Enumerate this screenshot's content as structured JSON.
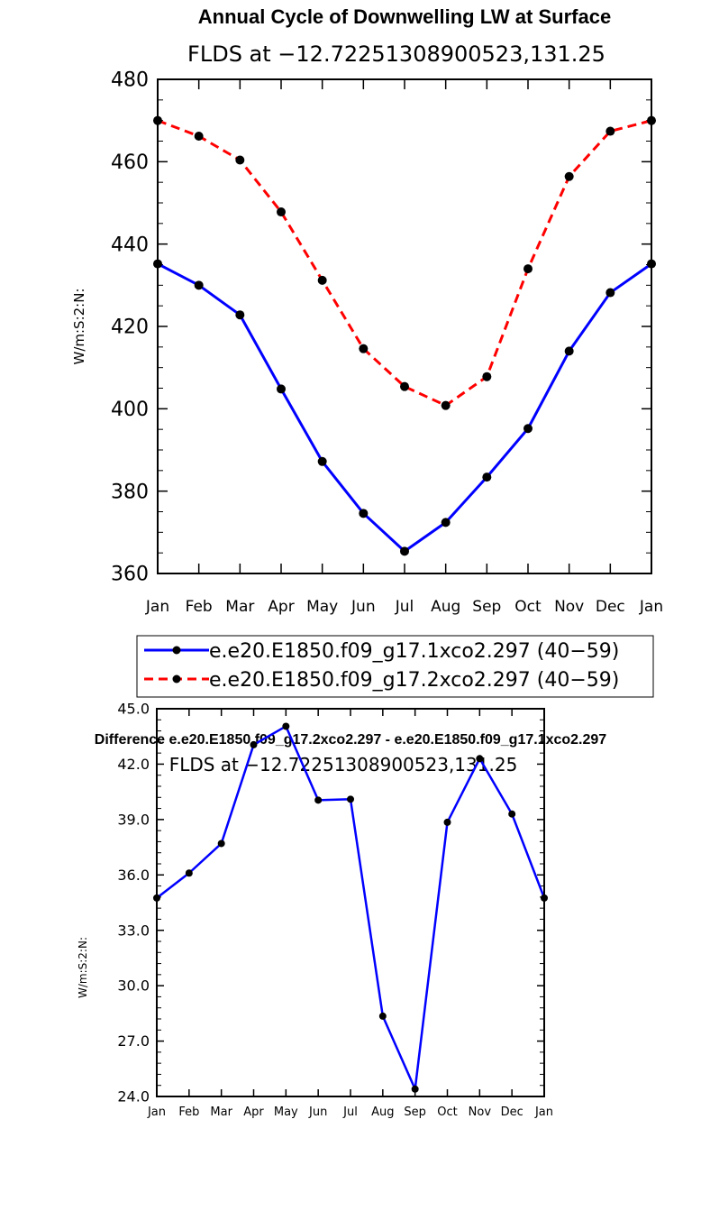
{
  "chart_data": [
    {
      "type": "line",
      "title": "Annual Cycle of Downwelling LW at Surface",
      "subtitle": "FLDS at −12.72251308900523,131.25",
      "ylabel": "W/m:S:2:N:",
      "xlabel": "",
      "categories": [
        "Jan",
        "Feb",
        "Mar",
        "Apr",
        "May",
        "Jun",
        "Jul",
        "Aug",
        "Sep",
        "Oct",
        "Nov",
        "Dec",
        "Jan"
      ],
      "ylim": [
        360,
        480
      ],
      "yticks": [
        "360",
        "380",
        "400",
        "420",
        "440",
        "460",
        "480"
      ],
      "grid": false,
      "legend_placement": "bottom",
      "series": [
        {
          "name": "e.e20.E1850.f09_g17.1xco2.297 (40−59)",
          "color": "#0000ff",
          "dash": "solid",
          "values": [
            435.2,
            430.0,
            422.8,
            404.8,
            387.2,
            374.6,
            365.4,
            372.4,
            383.4,
            395.2,
            414.0,
            428.2,
            435.2
          ]
        },
        {
          "name": "e.e20.E1850.f09_g17.2xco2.297 (40−59)",
          "color": "#ff0000",
          "dash": "dashed",
          "values": [
            470.0,
            466.2,
            460.4,
            447.8,
            431.2,
            414.6,
            405.4,
            400.8,
            407.8,
            434.0,
            456.4,
            467.4,
            470.0
          ]
        }
      ]
    },
    {
      "type": "line",
      "title": "Difference e.e20.E1850.f09_g17.2xco2.297 - e.e20.E1850.f09_g17.1xco2.297",
      "subtitle": "FLDS at −12.72251308900523,131.25",
      "ylabel": "W/m:S:2:N:",
      "xlabel": "",
      "categories": [
        "Jan",
        "Feb",
        "Mar",
        "Apr",
        "May",
        "Jun",
        "Jul",
        "Aug",
        "Sep",
        "Oct",
        "Nov",
        "Dec",
        "Jan"
      ],
      "ylim": [
        24.0,
        45.0
      ],
      "yticks": [
        "24.0",
        "27.0",
        "30.0",
        "33.0",
        "36.0",
        "39.0",
        "42.0",
        "45.0"
      ],
      "grid": false,
      "series": [
        {
          "color": "#0000ff",
          "dash": "solid",
          "values": [
            34.75,
            36.1,
            37.7,
            43.05,
            44.05,
            40.05,
            40.1,
            28.35,
            24.4,
            38.85,
            42.3,
            39.3,
            34.75
          ]
        }
      ]
    }
  ]
}
